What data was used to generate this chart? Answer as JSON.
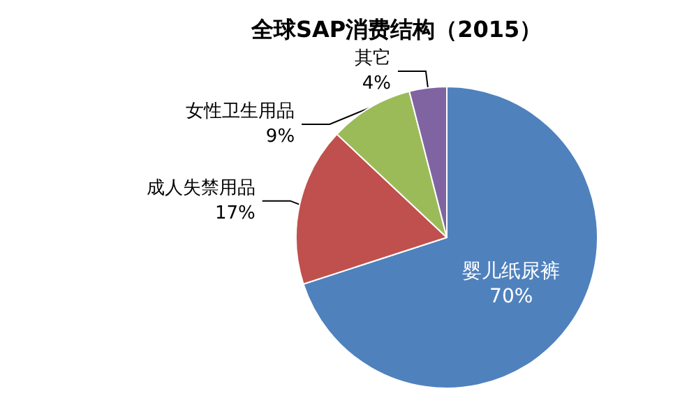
{
  "chart_data": {
    "type": "pie",
    "title": "全球SAP消费结构（2015）",
    "categories": [
      "婴儿纸尿裤",
      "成人失禁用品",
      "女性卫生用品",
      "其它"
    ],
    "values": [
      70,
      17,
      9,
      4
    ],
    "value_labels": [
      "70%",
      "17%",
      "9%",
      "4%"
    ],
    "colors": [
      "#4f81bd",
      "#c0504d",
      "#9bbb59",
      "#8064a2"
    ],
    "legend": false
  }
}
